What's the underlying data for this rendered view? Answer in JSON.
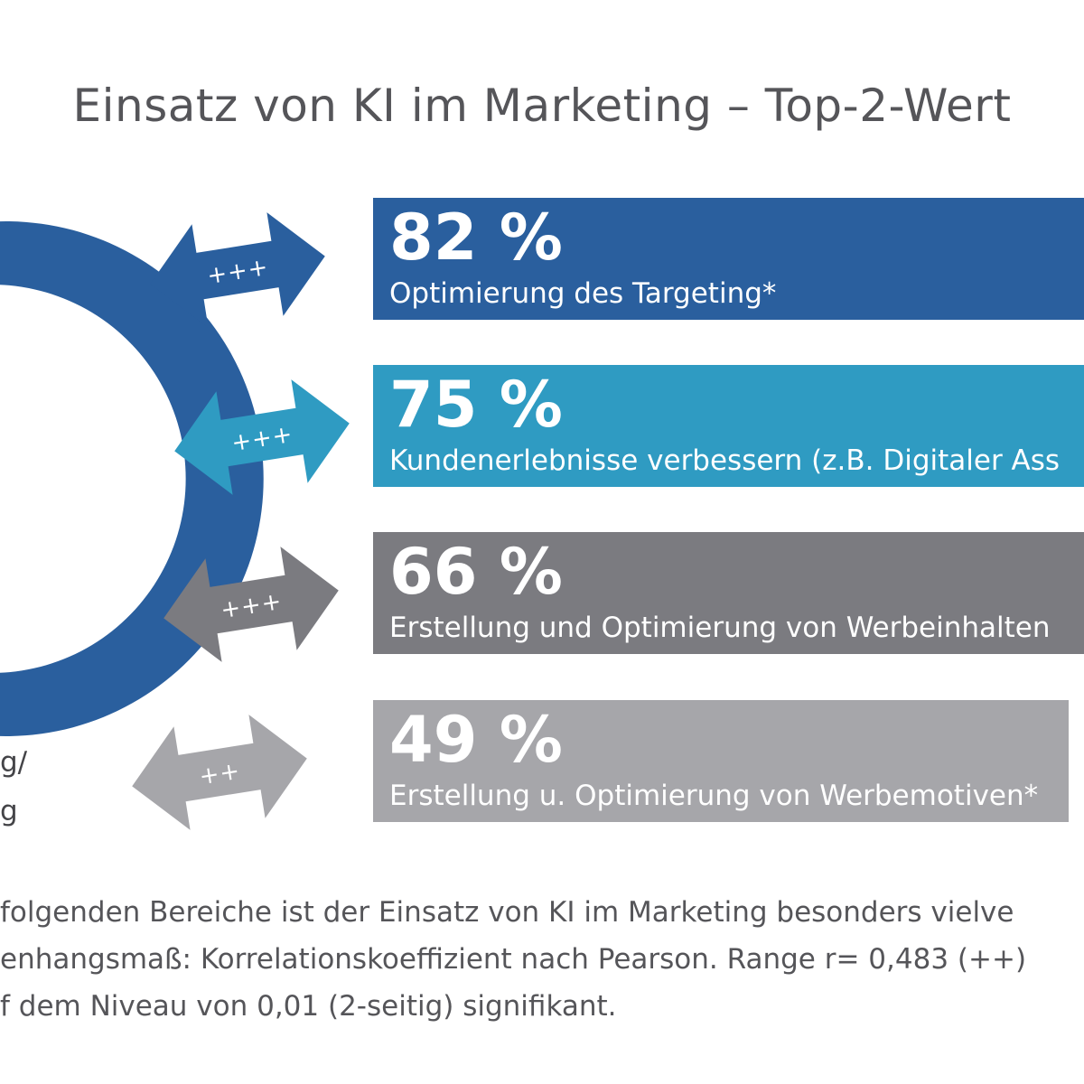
{
  "chart_data": {
    "type": "bar",
    "title": "Einsatz von KI im Marketing – Top-2-Wert",
    "unit": "%",
    "bars": [
      {
        "value": 82,
        "value_label": "82 %",
        "category": "Optimierung des Targeting*",
        "correlation": "+++",
        "color": "#2a5f9e"
      },
      {
        "value": 75,
        "value_label": "75 %",
        "category": "Kundenerlebnisse verbessern (z.B. Digitaler Ass",
        "correlation": "+++",
        "color": "#2f9bc2"
      },
      {
        "value": 66,
        "value_label": "66 %",
        "category": "Erstellung und Optimierung von Werbeinhalten",
        "correlation": "+++",
        "color": "#7b7b80"
      },
      {
        "value": 49,
        "value_label": "49 %",
        "category": "Erstellung u. Optimierung von Werbemotiven*",
        "correlation": "++",
        "color": "#a6a6aa"
      }
    ],
    "left_label_fragments": [
      "g/",
      "g"
    ],
    "footnote_lines": [
      "folgenden Bereiche ist der Einsatz von KI im Marketing besonders vielve",
      "enhangsmaß: Korrelationskoeffizient nach Pearson. Range r= 0,483 (++)",
      "f dem Niveau von 0,01 (2-seitig) signifikant."
    ],
    "colors": {
      "ring": "#2a5f9e",
      "title": "#555559",
      "text": "#444448"
    }
  }
}
